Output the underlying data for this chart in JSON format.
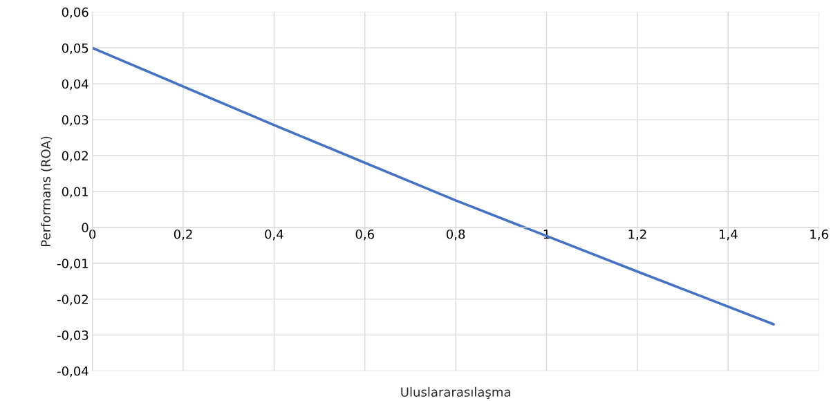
{
  "chart_data": {
    "type": "line",
    "xlabel": "Uluslararasılaşma",
    "ylabel": "Performans (ROA)",
    "x": [
      0,
      0.4,
      0.8,
      1.2,
      1.5
    ],
    "series": [
      {
        "color": "#4472c4",
        "values": [
          0.05,
          0.0285,
          0.0075,
          -0.0123,
          -0.027
        ]
      }
    ],
    "xlim": [
      0,
      1.6
    ],
    "ylim": [
      -0.04,
      0.06
    ],
    "xticks": [
      0,
      {
        "value": 0.2,
        "label": "0,2"
      },
      {
        "value": 0.4,
        "label": "0,4"
      },
      {
        "value": 0.6,
        "label": "0,6"
      },
      {
        "value": 0.8,
        "label": "0,8"
      },
      1,
      {
        "value": 1.2,
        "label": "1,2"
      },
      {
        "value": 1.4,
        "label": "1,4"
      },
      {
        "value": 1.6,
        "label": "1,6"
      }
    ],
    "yticks": [
      {
        "value": -0.04,
        "label": "-0,04"
      },
      {
        "value": -0.03,
        "label": "-0,03"
      },
      {
        "value": -0.02,
        "label": "-0,02"
      },
      {
        "value": -0.01,
        "label": "-0,01"
      },
      0,
      {
        "value": 0.01,
        "label": "0,01"
      },
      {
        "value": 0.02,
        "label": "0,02"
      },
      {
        "value": 0.03,
        "label": "0,03"
      },
      {
        "value": 0.04,
        "label": "0,04"
      },
      {
        "value": 0.05,
        "label": "0,05"
      },
      {
        "value": 0.06,
        "label": "0,06"
      }
    ],
    "grid": true,
    "marker": "none",
    "line_style": "solid"
  }
}
